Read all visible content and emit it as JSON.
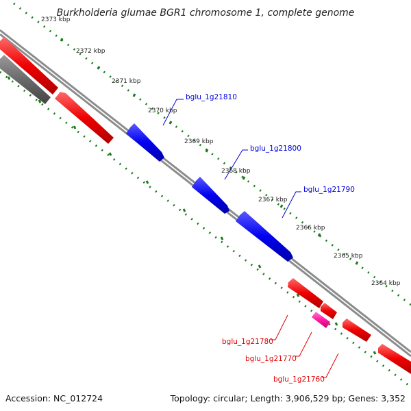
{
  "title": "Burkholderia glumae BGR1 chromosome 1, complete genome",
  "footer": {
    "accession": "Accession: NC_012724",
    "summary": "Topology: circular; Length: 3,906,529 bp; Genes: 3,352"
  },
  "ticks": [
    "2373 kbp",
    "2372 kbp",
    "2371 kbp",
    "2370 kbp",
    "2369 kbp",
    "2368 kbp",
    "2367 kbp",
    "2366 kbp",
    "2365 kbp",
    "2364 kbp"
  ],
  "genes": {
    "forward": [
      {
        "label": "bglu_1g21810",
        "color": "#0000dd"
      },
      {
        "label": "bglu_1g21800",
        "color": "#0000dd"
      },
      {
        "label": "bglu_1g21790",
        "color": "#0000dd"
      }
    ],
    "reverse": [
      {
        "label": "bglu_1g21780",
        "color": "#dd0000"
      },
      {
        "label": "bglu_1g21770",
        "color": "#dd0000"
      },
      {
        "label": "bglu_1g21760",
        "color": "#dd0000"
      }
    ]
  },
  "colors": {
    "backbone": "#888888",
    "forward_gene": "#0000ff",
    "reverse_gene": "#ff0000",
    "pseudogene": "#ff2aa8",
    "other_feature": "#666666",
    "tick_mark": "#1a7a1a"
  }
}
